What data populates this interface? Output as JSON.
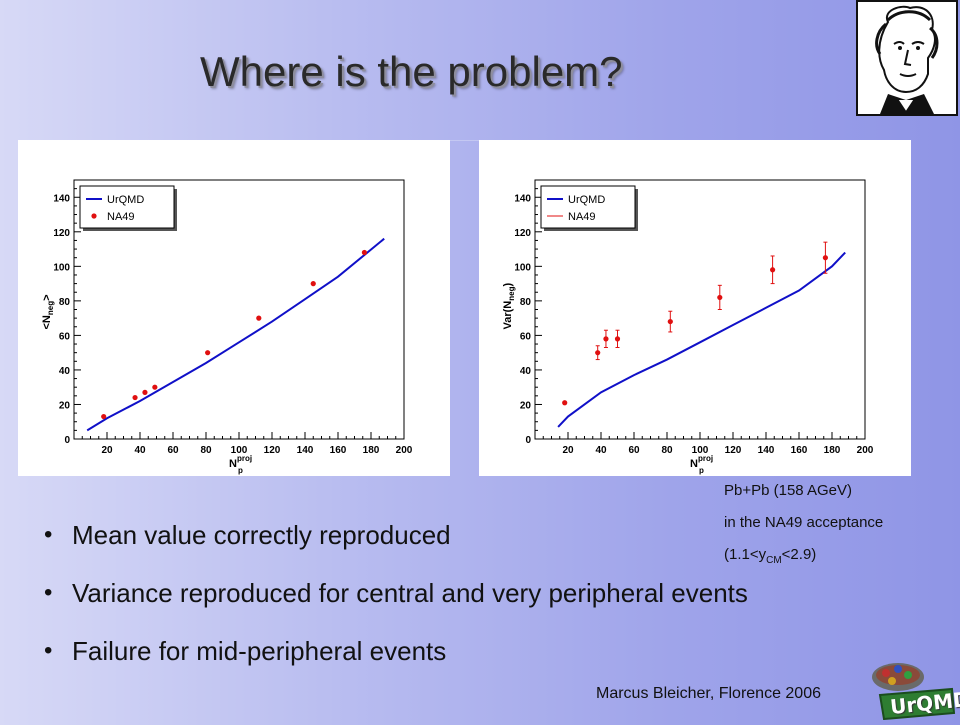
{
  "slide": {
    "title": "Where is the problem?",
    "info_lines": {
      "line1": "Pb+Pb (158 AGeV)",
      "line2": "in the NA49 acceptance",
      "line3_prefix": "(1.1<y",
      "line3_sub": "CM",
      "line3_suffix": "<2.9)"
    },
    "bullets": [
      "Mean value correctly reproduced",
      "Variance reproduced for central and very peripheral events",
      "Failure for mid-peripheral events"
    ],
    "footer": "Marcus Bleicher, Florence 2006",
    "logo_text": "UrQMD"
  },
  "colors": {
    "urqmd_line": "#1010c8",
    "na49_points": "#e01010"
  },
  "icons": {
    "portrait": "goethe-portrait-icon",
    "logo": "urqmd-logo-icon"
  },
  "chart_data": [
    {
      "type": "line",
      "xlabel": "N",
      "xlabel_sub": "p",
      "xlabel_sup": "proj",
      "ylabel": "<N",
      "ylabel_sub": "neg",
      "ylabel_suffix": ">",
      "xlim": [
        0,
        200
      ],
      "ylim": [
        0,
        150
      ],
      "xticks": [
        20,
        40,
        60,
        80,
        100,
        120,
        140,
        160,
        180,
        200
      ],
      "yticks": [
        0,
        20,
        40,
        60,
        80,
        100,
        120,
        140
      ],
      "legend_position": "top-left",
      "series": [
        {
          "name": "UrQMD",
          "kind": "line",
          "x": [
            8,
            20,
            40,
            60,
            80,
            100,
            120,
            140,
            160,
            188
          ],
          "y": [
            5,
            12,
            22,
            33,
            44,
            56,
            68,
            81,
            94,
            116
          ]
        },
        {
          "name": "NA49",
          "kind": "points",
          "x": [
            18,
            37,
            43,
            49,
            81,
            112,
            145,
            176
          ],
          "y": [
            13,
            24,
            27,
            30,
            50,
            70,
            90,
            108
          ]
        }
      ]
    },
    {
      "type": "line",
      "xlabel": "N",
      "xlabel_sub": "p",
      "xlabel_sup": "proj",
      "ylabel": "Var(N",
      "ylabel_sub": "neg",
      "ylabel_suffix": ")",
      "xlim": [
        0,
        200
      ],
      "ylim": [
        0,
        150
      ],
      "xticks": [
        20,
        40,
        60,
        80,
        100,
        120,
        140,
        160,
        180,
        200
      ],
      "yticks": [
        0,
        20,
        40,
        60,
        80,
        100,
        120,
        140
      ],
      "legend_position": "top-left",
      "series": [
        {
          "name": "UrQMD",
          "kind": "line",
          "x": [
            14,
            20,
            40,
            60,
            80,
            100,
            120,
            140,
            160,
            180,
            188
          ],
          "y": [
            7,
            13,
            27,
            37,
            46,
            56,
            66,
            76,
            86,
            100,
            108
          ]
        },
        {
          "name": "NA49",
          "kind": "points",
          "x": [
            18,
            38,
            43,
            50,
            82,
            112,
            144,
            176
          ],
          "y": [
            21,
            50,
            58,
            58,
            68,
            82,
            98,
            105
          ],
          "err": [
            0,
            4,
            5,
            5,
            6,
            7,
            8,
            9
          ]
        }
      ]
    }
  ]
}
